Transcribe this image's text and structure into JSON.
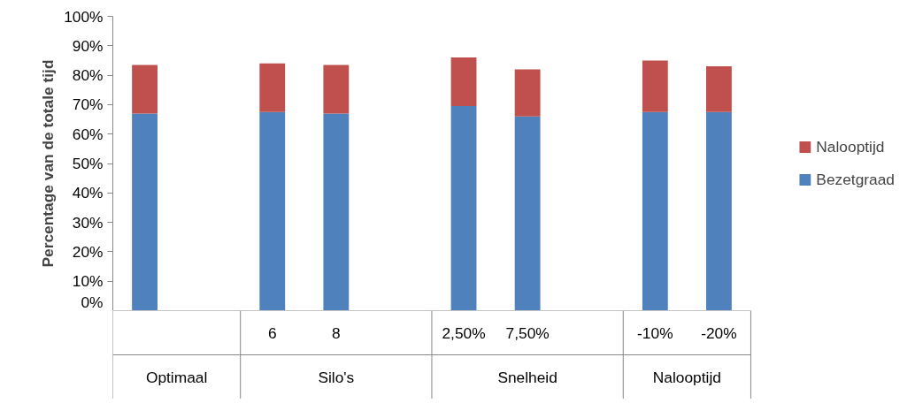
{
  "chart_data": {
    "type": "bar",
    "stacked": true,
    "ylabel": "Percentage van de totale tijd",
    "categories": [
      null,
      null,
      "6",
      "8",
      null,
      "2,50%",
      "7,50%",
      null,
      "-10%",
      "-20%"
    ],
    "annotations": [
      "Optimaal",
      "Silo's",
      "Snelheid",
      "Nalooptijd"
    ],
    "series": [
      {
        "name": "Bezetgraad",
        "color": "#4f81bd",
        "values": [
          67,
          null,
          67.5,
          67,
          null,
          69.5,
          66,
          null,
          67.5,
          67.5
        ]
      },
      {
        "name": "Nalooptijd",
        "color": "#c0504d",
        "values": [
          16.5,
          null,
          16.5,
          16.5,
          null,
          16.5,
          16,
          null,
          17.5,
          15.5
        ]
      }
    ],
    "ylim": [
      0,
      100
    ],
    "yticks": [
      {
        "value": 0,
        "label": "0%"
      },
      {
        "value": 10,
        "label": "10%"
      },
      {
        "value": 20,
        "label": "20%"
      },
      {
        "value": 30,
        "label": "30%"
      },
      {
        "value": 40,
        "label": "40%"
      },
      {
        "value": 50,
        "label": "50%"
      },
      {
        "value": 60,
        "label": "60%"
      },
      {
        "value": 70,
        "label": "70%"
      },
      {
        "value": 80,
        "label": "80%"
      },
      {
        "value": 90,
        "label": "90%"
      },
      {
        "value": 100,
        "label": "100%"
      }
    ],
    "grid": false,
    "legend": "right"
  }
}
